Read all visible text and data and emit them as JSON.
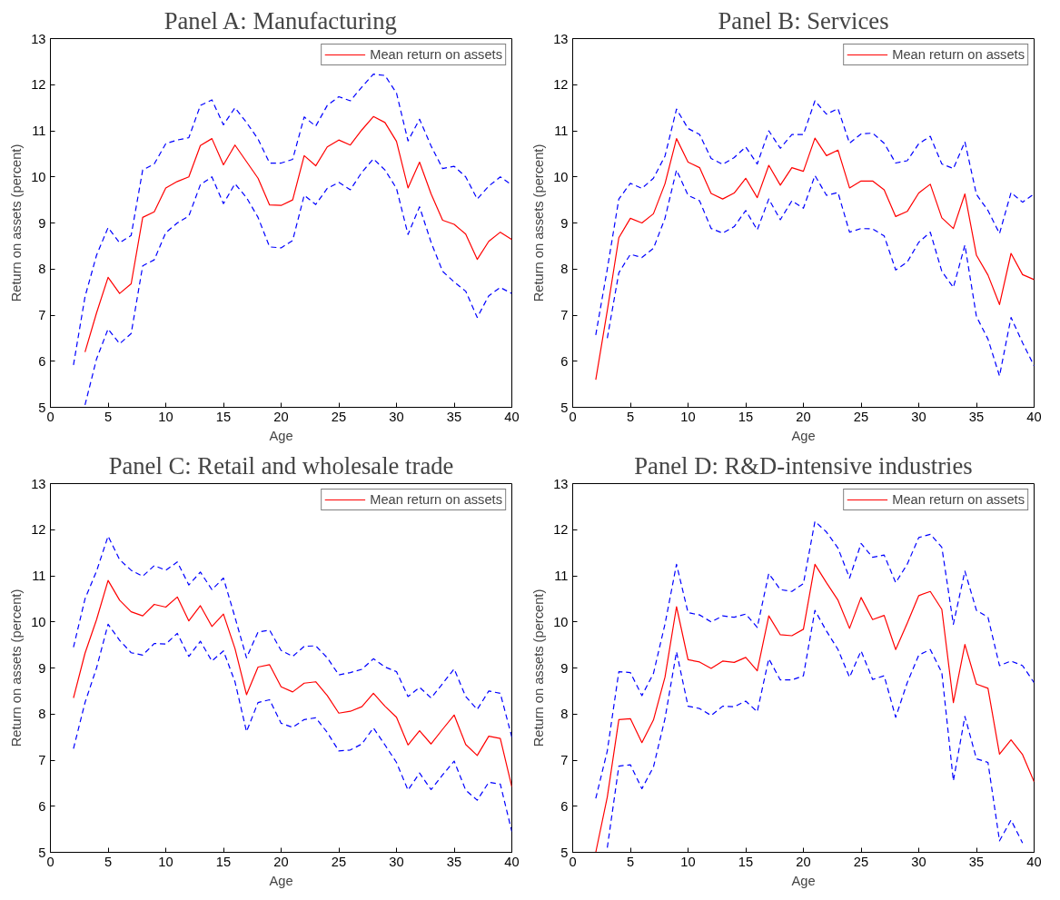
{
  "chart_data": [
    {
      "type": "line",
      "title": "Panel A: Manufacturing",
      "xlabel": "Age",
      "ylabel": "Return on assets (percent)",
      "x": [
        2,
        3,
        4,
        5,
        6,
        7,
        8,
        9,
        10,
        11,
        12,
        13,
        14,
        15,
        16,
        17,
        18,
        19,
        20,
        21,
        22,
        23,
        24,
        25,
        26,
        27,
        28,
        29,
        30,
        31,
        32,
        33,
        34,
        35,
        36,
        37,
        38,
        39,
        40
      ],
      "series": [
        {
          "name": "Mean return on assets",
          "color": "#ff0000",
          "line_style": "solid",
          "values": [
            null,
            6.2,
            7.05,
            7.82,
            7.47,
            7.68,
            9.12,
            9.24,
            9.76,
            9.9,
            10.0,
            10.68,
            10.83,
            10.26,
            10.69,
            10.33,
            9.97,
            9.39,
            9.38,
            9.5,
            10.46,
            10.24,
            10.65,
            10.8,
            10.69,
            11.02,
            11.31,
            11.18,
            10.77,
            9.76,
            10.32,
            9.63,
            9.06,
            8.97,
            8.76,
            8.21,
            8.6,
            8.8,
            8.64
          ]
        },
        {
          "color": "#0000ff",
          "line_style": "dashed",
          "values": [
            5.92,
            7.4,
            8.3,
            8.9,
            8.57,
            8.73,
            10.15,
            10.28,
            10.72,
            10.8,
            10.85,
            11.55,
            11.67,
            11.13,
            11.5,
            11.18,
            10.82,
            10.3,
            10.3,
            10.38,
            11.3,
            11.1,
            11.55,
            11.74,
            11.65,
            11.95,
            12.23,
            12.2,
            11.82,
            10.78,
            11.25,
            10.67,
            10.18,
            10.23,
            10.0,
            9.52,
            9.8,
            10.0,
            9.82
          ]
        },
        {
          "color": "#0000ff",
          "line_style": "dashed",
          "values": [
            null,
            5.05,
            6.05,
            6.7,
            6.38,
            6.6,
            8.07,
            8.2,
            8.79,
            9.0,
            9.15,
            9.83,
            10.0,
            9.42,
            9.85,
            9.55,
            9.12,
            8.48,
            8.46,
            8.62,
            9.6,
            9.4,
            9.75,
            9.88,
            9.72,
            10.1,
            10.39,
            10.15,
            9.75,
            8.75,
            9.35,
            8.58,
            7.95,
            7.72,
            7.52,
            6.95,
            7.42,
            7.6,
            7.47
          ]
        }
      ],
      "xlim": [
        0,
        40
      ],
      "xticks": [
        0,
        5,
        10,
        15,
        20,
        25,
        30,
        35,
        40
      ],
      "ylim": [
        5,
        13
      ],
      "yticks": [
        5,
        6,
        7,
        8,
        9,
        10,
        11,
        12,
        13
      ],
      "legend": "top right"
    },
    {
      "type": "line",
      "title": "Panel B: Services",
      "xlabel": "Age",
      "ylabel": "Return on assets (percent)",
      "x": [
        2,
        3,
        4,
        5,
        6,
        7,
        8,
        9,
        10,
        11,
        12,
        13,
        14,
        15,
        16,
        17,
        18,
        19,
        20,
        21,
        22,
        23,
        24,
        25,
        26,
        27,
        28,
        29,
        30,
        31,
        32,
        33,
        34,
        35,
        36,
        37,
        38,
        39,
        40
      ],
      "series": [
        {
          "name": "Mean return on assets",
          "color": "#ff0000",
          "line_style": "solid",
          "values": [
            5.6,
            7.1,
            8.68,
            9.1,
            9.0,
            9.2,
            9.85,
            10.83,
            10.32,
            10.2,
            9.64,
            9.52,
            9.65,
            9.97,
            9.55,
            10.25,
            9.82,
            10.2,
            10.12,
            10.84,
            10.46,
            10.58,
            9.76,
            9.91,
            9.91,
            9.72,
            9.14,
            9.25,
            9.65,
            9.84,
            9.11,
            8.88,
            9.63,
            8.3,
            7.87,
            7.23,
            8.34,
            7.88,
            7.77
          ]
        },
        {
          "color": "#0000ff",
          "line_style": "dashed",
          "values": [
            6.57,
            8.0,
            9.52,
            9.86,
            9.75,
            9.97,
            10.45,
            11.47,
            11.05,
            10.92,
            10.4,
            10.27,
            10.42,
            10.65,
            10.28,
            11.0,
            10.62,
            10.92,
            10.92,
            11.65,
            11.36,
            11.48,
            10.73,
            10.93,
            10.95,
            10.73,
            10.3,
            10.35,
            10.72,
            10.88,
            10.28,
            10.18,
            10.76,
            9.62,
            9.27,
            8.77,
            9.66,
            9.45,
            9.63
          ]
        },
        {
          "color": "#0000ff",
          "line_style": "dashed",
          "values": [
            null,
            6.5,
            7.92,
            8.32,
            8.25,
            8.45,
            9.1,
            10.15,
            9.6,
            9.48,
            8.88,
            8.78,
            8.92,
            9.27,
            8.85,
            9.52,
            9.07,
            9.48,
            9.32,
            10.03,
            9.6,
            9.66,
            8.8,
            8.88,
            8.87,
            8.72,
            7.98,
            8.15,
            8.58,
            8.8,
            7.95,
            7.6,
            8.52,
            6.97,
            6.48,
            5.68,
            6.95,
            6.4,
            5.9
          ]
        }
      ],
      "xlim": [
        0,
        40
      ],
      "xticks": [
        0,
        5,
        10,
        15,
        20,
        25,
        30,
        35,
        40
      ],
      "ylim": [
        5,
        13
      ],
      "yticks": [
        5,
        6,
        7,
        8,
        9,
        10,
        11,
        12,
        13
      ],
      "legend": "top right"
    },
    {
      "type": "line",
      "title": "Panel C: Retail and wholesale trade",
      "xlabel": "Age",
      "ylabel": "Return on assets (percent)",
      "x": [
        2,
        3,
        4,
        5,
        6,
        7,
        8,
        9,
        10,
        11,
        12,
        13,
        14,
        15,
        16,
        17,
        18,
        19,
        20,
        21,
        22,
        23,
        24,
        25,
        26,
        27,
        28,
        29,
        30,
        31,
        32,
        33,
        34,
        35,
        36,
        37,
        38,
        39,
        40
      ],
      "series": [
        {
          "name": "Mean return on assets",
          "color": "#ff0000",
          "line_style": "solid",
          "values": [
            8.35,
            9.32,
            10.05,
            10.9,
            10.47,
            10.22,
            10.13,
            10.38,
            10.32,
            10.54,
            10.02,
            10.35,
            9.9,
            10.17,
            9.42,
            8.42,
            9.02,
            9.07,
            8.59,
            8.48,
            8.67,
            8.7,
            8.4,
            8.02,
            8.06,
            8.16,
            8.45,
            8.17,
            7.93,
            7.33,
            7.64,
            7.35,
            7.67,
            7.98,
            7.34,
            7.1,
            7.52,
            7.47,
            6.42
          ]
        },
        {
          "color": "#0000ff",
          "line_style": "dashed",
          "values": [
            9.45,
            10.5,
            11.1,
            11.86,
            11.35,
            11.12,
            10.99,
            11.22,
            11.12,
            11.3,
            10.8,
            11.08,
            10.7,
            10.95,
            10.1,
            9.22,
            9.78,
            9.82,
            9.38,
            9.25,
            9.47,
            9.48,
            9.22,
            8.85,
            8.9,
            8.97,
            9.2,
            9.02,
            8.92,
            8.38,
            8.58,
            8.35,
            8.66,
            8.98,
            8.38,
            8.1,
            8.5,
            8.45,
            7.5
          ]
        },
        {
          "color": "#0000ff",
          "line_style": "dashed",
          "values": [
            7.25,
            8.25,
            9.0,
            9.95,
            9.6,
            9.33,
            9.28,
            9.53,
            9.52,
            9.75,
            9.25,
            9.58,
            9.15,
            9.37,
            8.7,
            7.62,
            8.25,
            8.31,
            7.8,
            7.71,
            7.88,
            7.92,
            7.6,
            7.2,
            7.22,
            7.35,
            7.7,
            7.33,
            6.95,
            6.35,
            6.72,
            6.36,
            6.68,
            6.98,
            6.35,
            6.13,
            6.52,
            6.48,
            5.45
          ]
        }
      ],
      "xlim": [
        0,
        40
      ],
      "xticks": [
        0,
        5,
        10,
        15,
        20,
        25,
        30,
        35,
        40
      ],
      "ylim": [
        5,
        13
      ],
      "yticks": [
        5,
        6,
        7,
        8,
        9,
        10,
        11,
        12,
        13
      ],
      "legend": "top right"
    },
    {
      "type": "line",
      "title": "Panel D: R&D-intensive industries",
      "xlabel": "Age",
      "ylabel": "Return on assets (percent)",
      "x": [
        2,
        3,
        4,
        5,
        6,
        7,
        8,
        9,
        10,
        11,
        12,
        13,
        14,
        15,
        16,
        17,
        18,
        19,
        20,
        21,
        22,
        23,
        24,
        25,
        26,
        27,
        28,
        29,
        30,
        31,
        32,
        33,
        34,
        35,
        36,
        37,
        38,
        39,
        40
      ],
      "series": [
        {
          "name": "Mean return on assets",
          "color": "#ff0000",
          "line_style": "solid",
          "values": [
            5.0,
            6.2,
            7.88,
            7.9,
            7.38,
            7.87,
            8.8,
            10.33,
            9.18,
            9.13,
            8.99,
            9.15,
            9.12,
            9.23,
            8.94,
            10.13,
            9.72,
            9.7,
            9.84,
            11.25,
            10.85,
            10.47,
            9.86,
            10.53,
            10.05,
            10.14,
            9.4,
            9.97,
            10.57,
            10.66,
            10.27,
            8.25,
            9.51,
            8.65,
            8.56,
            7.13,
            7.44,
            7.12,
            6.53
          ]
        },
        {
          "color": "#0000ff",
          "line_style": "dashed",
          "values": [
            6.17,
            7.2,
            8.92,
            8.9,
            8.4,
            8.88,
            9.95,
            11.25,
            10.2,
            10.15,
            10.0,
            10.13,
            10.1,
            10.17,
            9.88,
            11.05,
            10.7,
            10.66,
            10.83,
            12.18,
            11.95,
            11.6,
            10.95,
            11.7,
            11.4,
            11.45,
            10.85,
            11.25,
            11.83,
            11.9,
            11.62,
            9.95,
            11.1,
            10.25,
            10.1,
            9.05,
            9.15,
            9.05,
            8.68
          ]
        },
        {
          "color": "#0000ff",
          "line_style": "dashed",
          "values": [
            null,
            5.1,
            6.87,
            6.9,
            6.38,
            6.85,
            7.9,
            9.35,
            8.17,
            8.12,
            7.97,
            8.17,
            8.16,
            8.28,
            8.05,
            9.2,
            8.74,
            8.74,
            8.83,
            10.25,
            9.8,
            9.4,
            8.8,
            9.37,
            8.75,
            8.83,
            7.93,
            8.68,
            9.28,
            9.4,
            8.9,
            6.55,
            7.95,
            7.03,
            6.95,
            5.25,
            5.7,
            5.2,
            null
          ]
        }
      ],
      "xlim": [
        0,
        40
      ],
      "xticks": [
        0,
        5,
        10,
        15,
        20,
        25,
        30,
        35,
        40
      ],
      "ylim": [
        5,
        13
      ],
      "yticks": [
        5,
        6,
        7,
        8,
        9,
        10,
        11,
        12,
        13
      ],
      "legend": "top right"
    }
  ]
}
